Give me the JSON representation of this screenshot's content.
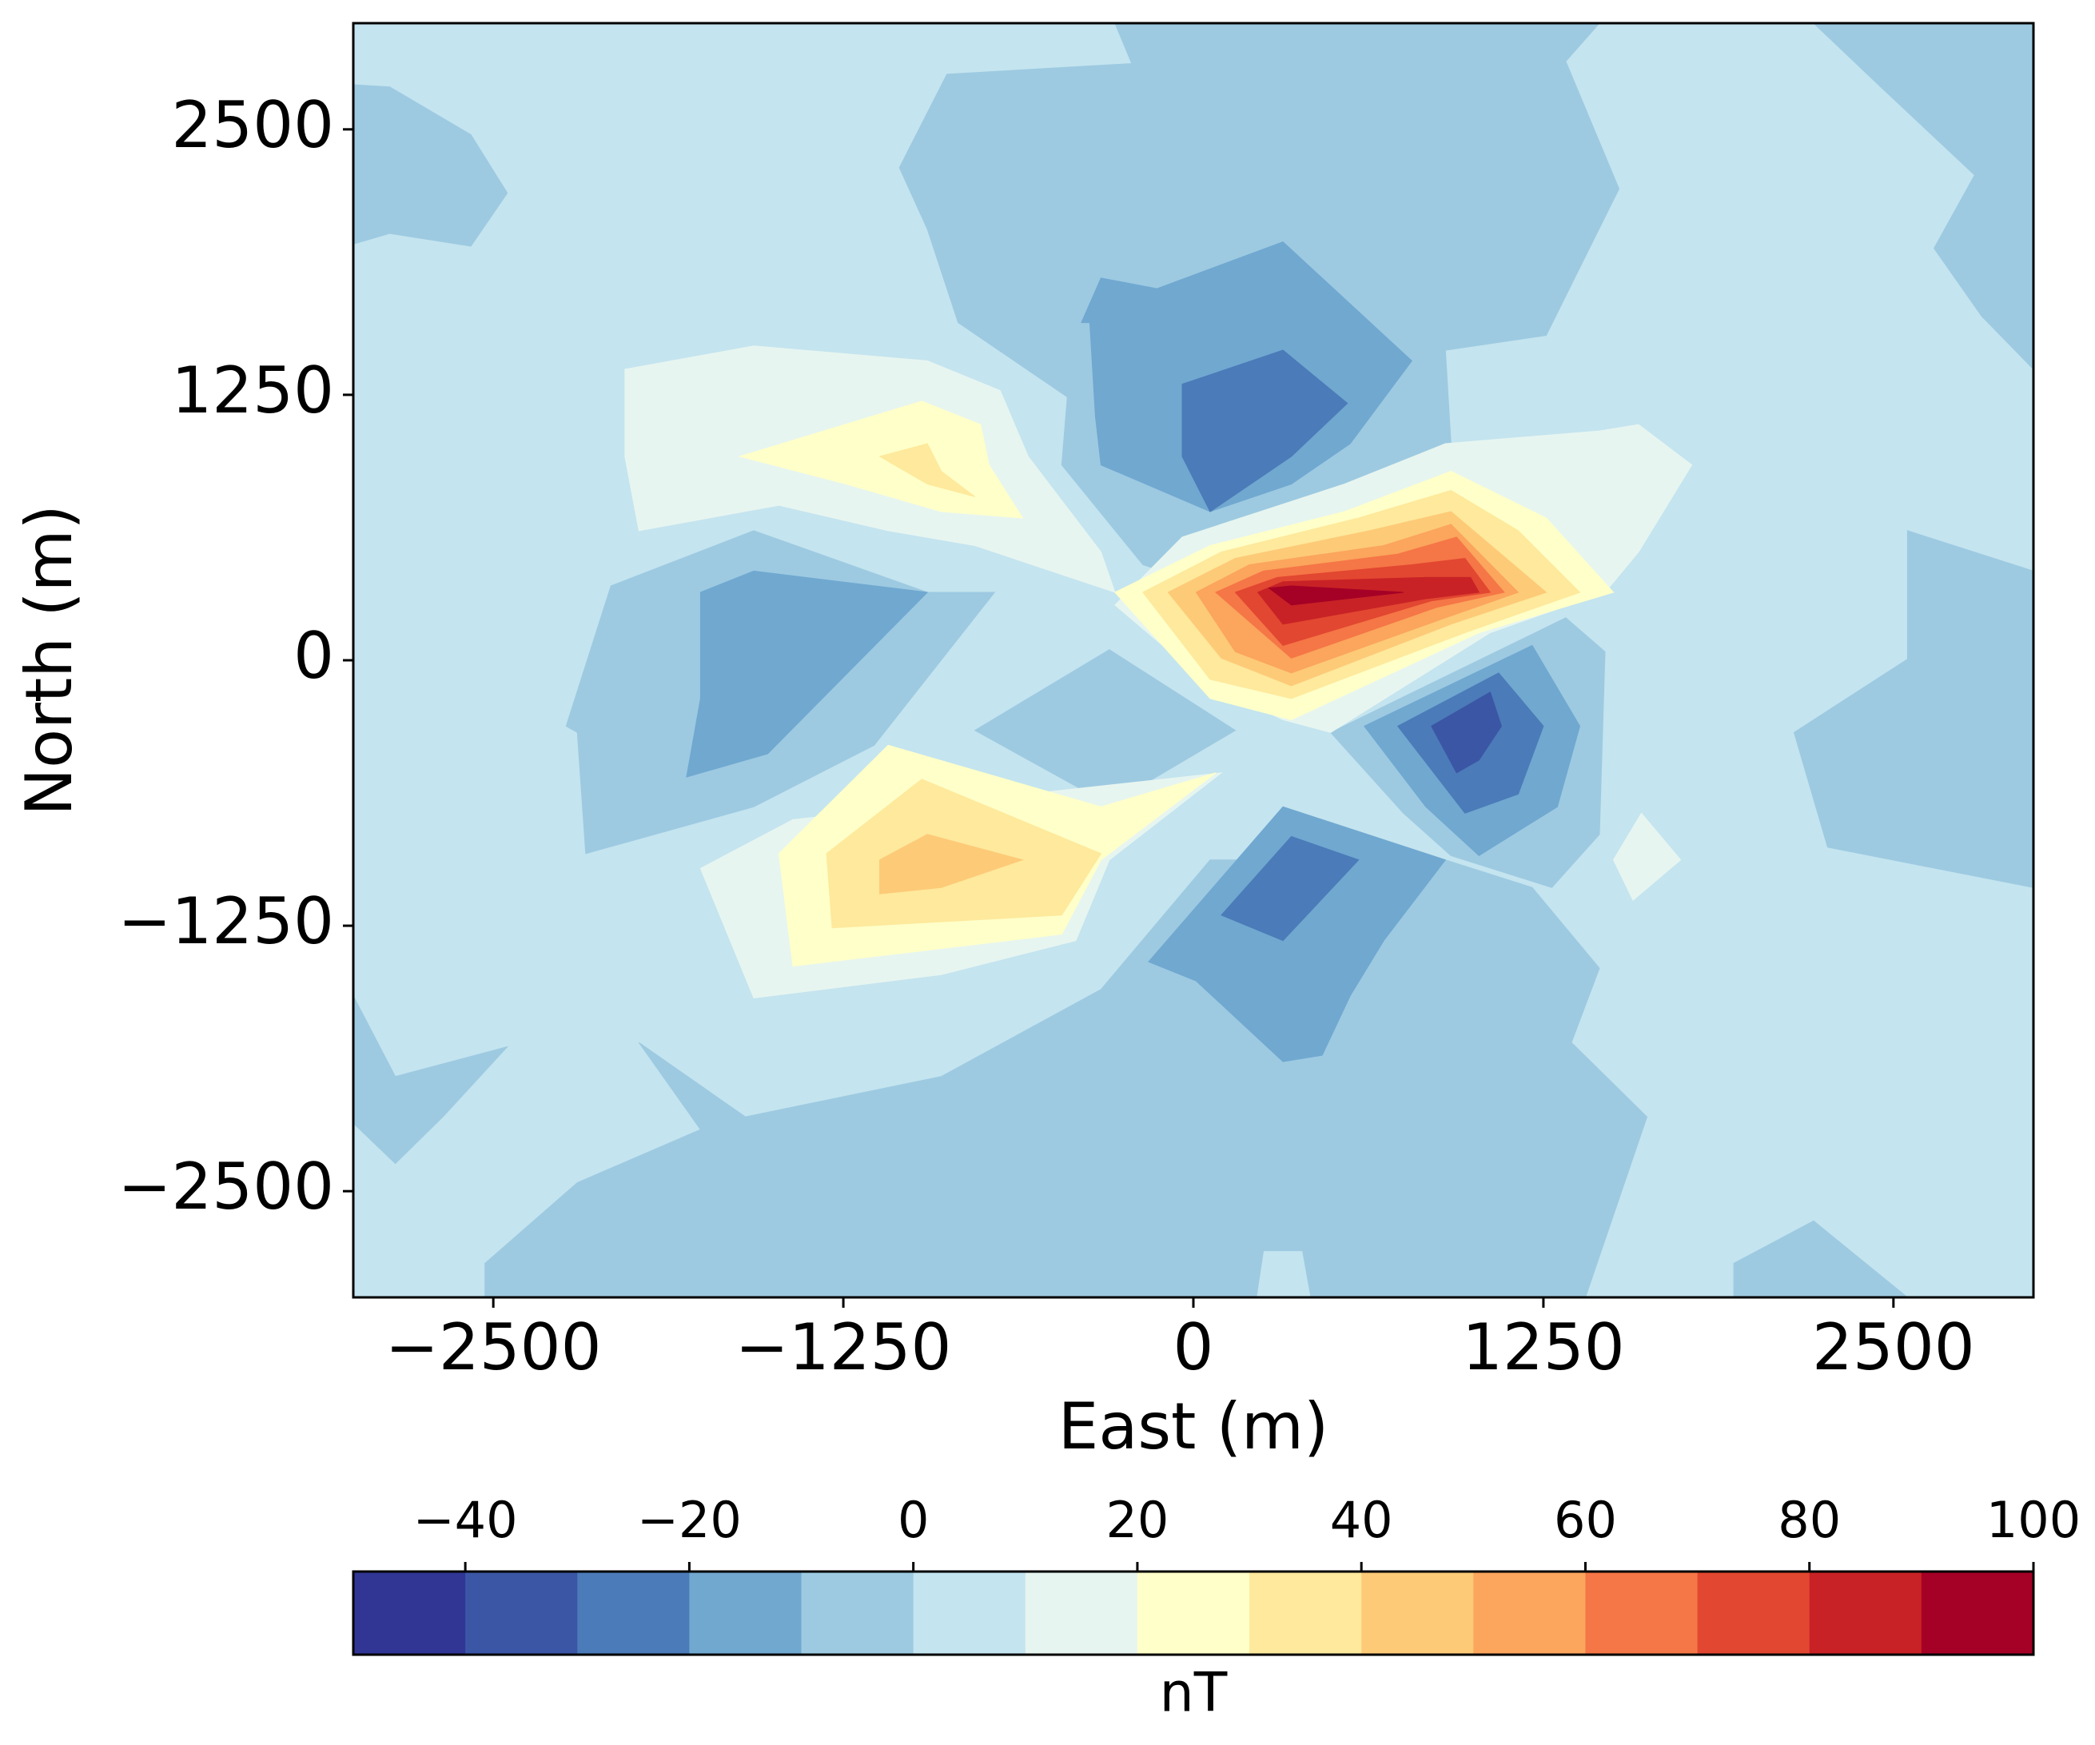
{
  "chart_data": {
    "type": "contourf",
    "xlabel": "East (m)",
    "ylabel": "North (m)",
    "colorbar_label": "nT",
    "xlim": [
      -3000,
      3000
    ],
    "ylim": [
      -3000,
      3000
    ],
    "xticks": [
      {
        "value": -2500,
        "label": "−2500"
      },
      {
        "value": -1250,
        "label": "−1250"
      },
      0,
      1250,
      2500
    ],
    "yticks": [
      {
        "value": -2500,
        "label": "−2500"
      },
      {
        "value": -1250,
        "label": "−1250"
      },
      0,
      1250,
      2500
    ],
    "levels": [
      -50,
      -40,
      -30,
      -20,
      -10,
      0,
      10,
      20,
      30,
      40,
      50,
      60,
      70,
      80,
      90,
      100
    ],
    "colors": [
      "#313695",
      "#3b56a5",
      "#4b7bb8",
      "#70a8d0",
      "#9dcae1",
      "#c4e4ef",
      "#e7f5f0",
      "#ffffc9",
      "#fee99c",
      "#fdca78",
      "#fba55d",
      "#f57646",
      "#e24731",
      "#c82226",
      "#a50026"
    ],
    "cbar_ticks": [
      {
        "value": -40,
        "label": "−40"
      },
      {
        "value": -20,
        "label": "−20"
      },
      0,
      20,
      40,
      60,
      80,
      100
    ],
    "background_level": 0,
    "regions": [
      {
        "level": -10,
        "x": [
          -3000,
          -2870,
          -2580,
          -2450,
          -2580,
          -2870,
          -3000
        ],
        "y": [
          2710,
          2700,
          2475,
          2200,
          1950,
          2010,
          1960
        ]
      },
      {
        "level": -10,
        "x": [
          -280,
          -220,
          -880,
          -1050,
          -950,
          -840,
          -450,
          -470,
          -180,
          -40,
          540,
          920,
          900,
          1260,
          1520,
          1330,
          1450
        ],
        "y": [
          3000,
          2810,
          2760,
          2320,
          2030,
          1590,
          1240,
          920,
          450,
          390,
          770,
          1020,
          1460,
          1530,
          2220,
          2820,
          3000
        ]
      },
      {
        "level": -10,
        "x": [
          2215,
          2430,
          2790,
          2645,
          2815,
          3000,
          3000
        ],
        "y": [
          3000,
          2730,
          2285,
          1940,
          1620,
          1370,
          3000
        ]
      },
      {
        "level": -10,
        "x": [
          2550,
          3000,
          3000,
          2265,
          2145,
          2550
        ],
        "y": [
          610,
          420,
          -1070,
          -880,
          -340,
          5
        ]
      },
      {
        "level": -10,
        "x": [
          -2080,
          -1570,
          -950,
          -710,
          -1140,
          -1570,
          -2170,
          -2200,
          -2240
        ],
        "y": [
          350,
          610,
          320,
          320,
          -400,
          -690,
          -910,
          -340,
          -310
        ]
      },
      {
        "level": -10,
        "x": [
          -780,
          -300,
          150,
          -300
        ],
        "y": [
          -330,
          50,
          -330,
          -680
        ]
      },
      {
        "level": -10,
        "x": [
          490,
          1330,
          1470,
          1450,
          1280,
          920,
          750
        ],
        "y": [
          -340,
          200,
          40,
          -820,
          -1070,
          -920,
          -720
        ]
      },
      {
        "level": -10,
        "x": [
          -2530,
          -2200,
          -1760,
          -1980,
          -1600,
          -900,
          -330,
          60,
          900,
          1210,
          1450,
          1350,
          1620,
          1400,
          420,
          390,
          250,
          225,
          -2530
        ],
        "y": [
          -2840,
          -2460,
          -2210,
          -1800,
          -2150,
          -1960,
          -1550,
          -940,
          -940,
          -1070,
          -1450,
          -1800,
          -2150,
          -3000,
          -3000,
          -2780,
          -2780,
          -3000,
          -3000
        ]
      },
      {
        "level": -10,
        "x": [
          -3000,
          -2850,
          -2450,
          -2680,
          -2850,
          -3000
        ],
        "y": [
          -1580,
          -1960,
          -1820,
          -2150,
          -2370,
          -2180
        ]
      },
      {
        "level": -10,
        "x": [
          1930,
          2215,
          2550,
          1930
        ],
        "y": [
          -2840,
          -2640,
          -3000,
          -3000
        ]
      },
      {
        "level": 10,
        "x": [
          -2030,
          -1570,
          -950,
          -690,
          -590,
          -330,
          -280,
          -780,
          -1090,
          -1480,
          -1980,
          -2030
        ],
        "y": [
          1370,
          1480,
          1410,
          1270,
          960,
          510,
          320,
          540,
          610,
          730,
          610,
          960
        ]
      },
      {
        "level": 10,
        "x": [
          900,
          1450,
          1590,
          1780,
          1590,
          1470,
          1060,
          490,
          320,
          60,
          -280,
          -40,
          540
        ],
        "y": [
          1020,
          1080,
          1110,
          920,
          510,
          320,
          130,
          -340,
          -280,
          -120,
          260,
          580,
          830
        ]
      },
      {
        "level": 10,
        "x": [
          -1760,
          -1430,
          100,
          -300,
          -420,
          -900,
          -1570
        ],
        "y": [
          -980,
          -750,
          -530,
          -940,
          -1320,
          -1480,
          -1590
        ]
      },
      {
        "level": 10,
        "x": [
          1500,
          1600,
          1740,
          1570
        ],
        "y": [
          -940,
          -720,
          -940,
          -1130
        ]
      },
      {
        "level": 20,
        "x": [
          -1620,
          -970,
          -760,
          -730,
          -610,
          -900,
          -1240
        ],
        "y": [
          960,
          1220,
          1110,
          920,
          670,
          700,
          830
        ]
      },
      {
        "level": 20,
        "x": [
          -280,
          60,
          540,
          920,
          1260,
          1500,
          1020,
          350,
          60
        ],
        "y": [
          320,
          540,
          700,
          890,
          670,
          320,
          130,
          -280,
          -180
        ]
      },
      {
        "level": 20,
        "x": [
          -1480,
          -1090,
          -330,
          80,
          -330,
          -470,
          -1430
        ],
        "y": [
          -910,
          -400,
          -690,
          -530,
          -940,
          -1290,
          -1440
        ]
      },
      {
        "level": 30,
        "x": [
          -1120,
          -950,
          -900,
          -780,
          -950
        ],
        "y": [
          960,
          1020,
          890,
          770,
          830
        ]
      },
      {
        "level": 30,
        "x": [
          -180,
          100,
          590,
          920,
          1160,
          1380,
          970,
          350,
          60
        ],
        "y": [
          320,
          510,
          670,
          800,
          610,
          320,
          130,
          -180,
          -90
        ]
      },
      {
        "level": 30,
        "x": [
          -1310,
          -970,
          -330,
          -470,
          -1290
        ],
        "y": [
          -910,
          -560,
          -910,
          -1200,
          -1260
        ]
      },
      {
        "level": 40,
        "x": [
          -1120,
          -950,
          -610,
          -900,
          -1120
        ],
        "y": [
          -940,
          -820,
          -940,
          -1070,
          -1100
        ]
      },
      {
        "level": 40,
        "x": [
          -90,
          150,
          630,
          920,
          1090,
          1260,
          920,
          350,
          100
        ],
        "y": [
          320,
          480,
          610,
          700,
          510,
          320,
          170,
          -120,
          10
        ]
      },
      {
        "level": 50,
        "x": [
          10,
          200,
          680,
          920,
          1040,
          1160,
          900,
          350,
          150
        ],
        "y": [
          320,
          450,
          540,
          640,
          480,
          320,
          200,
          -60,
          40
        ]
      },
      {
        "level": 60,
        "x": [
          80,
          250,
          730,
          940,
          1110,
          870,
          350
        ],
        "y": [
          320,
          420,
          500,
          580,
          320,
          250,
          10
        ]
      },
      {
        "level": 70,
        "x": [
          150,
          300,
          780,
          970,
          1060,
          850,
          320
        ],
        "y": [
          320,
          390,
          450,
          480,
          320,
          280,
          70
        ]
      },
      {
        "level": 80,
        "x": [
          230,
          320,
          830,
          990,
          1020,
          830,
          320
        ],
        "y": [
          320,
          370,
          390,
          390,
          320,
          290,
          170
        ]
      },
      {
        "level": 90,
        "x": [
          270,
          350,
          750,
          350
        ],
        "y": [
          340,
          350,
          320,
          260
        ]
      },
      {
        "level": -20,
        "x": [
          -400,
          -330,
          -130,
          320,
          780,
          560,
          350,
          60,
          -330,
          -350,
          -370
        ],
        "y": [
          1590,
          1800,
          1750,
          1970,
          1410,
          1020,
          830,
          700,
          920,
          1150,
          1590
        ]
      },
      {
        "level": -20,
        "x": [
          -1760,
          -1570,
          -950,
          -1520,
          -1810,
          -1760
        ],
        "y": [
          320,
          420,
          320,
          -440,
          -550,
          -180
        ]
      },
      {
        "level": -20,
        "x": [
          610,
          1210,
          1380,
          1300,
          1020,
          830
        ],
        "y": [
          -310,
          70,
          -310,
          -690,
          -920,
          -690
        ]
      },
      {
        "level": -20,
        "x": [
          -160,
          320,
          900,
          680,
          560,
          460,
          320,
          10
        ],
        "y": [
          -1420,
          -690,
          -940,
          -1320,
          -1580,
          -1860,
          -1890,
          -1510
        ]
      },
      {
        "level": -30,
        "x": [
          -40,
          320,
          550,
          350,
          60,
          -40
        ],
        "y": [
          1300,
          1460,
          1210,
          960,
          700,
          960
        ]
      },
      {
        "level": -30,
        "x": [
          730,
          1090,
          1250,
          1160,
          970
        ],
        "y": [
          -310,
          -60,
          -310,
          -630,
          -720
        ]
      },
      {
        "level": -30,
        "x": [
          100,
          350,
          590,
          320
        ],
        "y": [
          -1200,
          -830,
          -940,
          -1320
        ]
      },
      {
        "level": -40,
        "x": [
          850,
          1060,
          1100,
          1020,
          940
        ],
        "y": [
          -310,
          -150,
          -310,
          -470,
          -530
        ]
      }
    ]
  }
}
